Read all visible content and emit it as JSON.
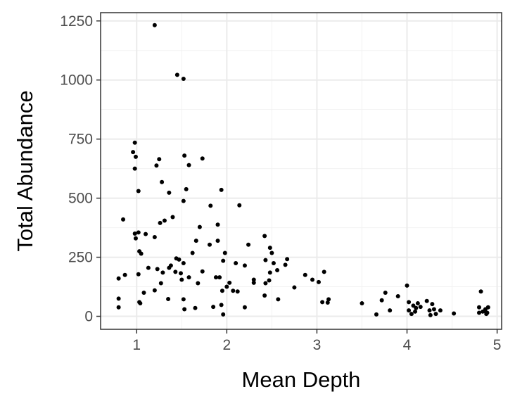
{
  "chart_data": {
    "type": "scatter",
    "xlabel": "Mean Depth",
    "ylabel": "Total Abundance",
    "xlim": [
      0.6,
      5.05
    ],
    "ylim": [
      -55,
      1285
    ],
    "x_ticks": [
      1,
      2,
      3,
      4,
      5
    ],
    "y_ticks": [
      0,
      250,
      500,
      750,
      1000,
      1250
    ],
    "x_tick_labels": [
      "1",
      "2",
      "3",
      "4",
      "5"
    ],
    "y_tick_labels": [
      "0",
      "250",
      "500",
      "750",
      "1000",
      "1250"
    ],
    "grid": true,
    "legend": "none",
    "point_color": "#000000",
    "points": [
      [
        1.2,
        1232
      ],
      [
        1.45,
        1022
      ],
      [
        1.52,
        1005
      ],
      [
        0.98,
        735
      ],
      [
        0.96,
        695
      ],
      [
        0.99,
        675
      ],
      [
        0.98,
        625
      ],
      [
        1.25,
        665
      ],
      [
        1.22,
        638
      ],
      [
        1.53,
        680
      ],
      [
        1.58,
        640
      ],
      [
        1.73,
        668
      ],
      [
        1.28,
        568
      ],
      [
        1.02,
        530
      ],
      [
        1.36,
        523
      ],
      [
        1.55,
        538
      ],
      [
        1.52,
        488
      ],
      [
        1.94,
        535
      ],
      [
        2.14,
        470
      ],
      [
        1.82,
        468
      ],
      [
        1.26,
        395
      ],
      [
        1.31,
        405
      ],
      [
        1.4,
        420
      ],
      [
        0.85,
        410
      ],
      [
        1.7,
        378
      ],
      [
        1.9,
        388
      ],
      [
        0.98,
        350
      ],
      [
        1.02,
        355
      ],
      [
        1.1,
        348
      ],
      [
        1.2,
        335
      ],
      [
        0.99,
        330
      ],
      [
        1.03,
        275
      ],
      [
        1.05,
        265
      ],
      [
        1.66,
        320
      ],
      [
        1.81,
        303
      ],
      [
        1.9,
        320
      ],
      [
        2.24,
        303
      ],
      [
        2.42,
        340
      ],
      [
        2.48,
        290
      ],
      [
        2.5,
        268
      ],
      [
        2.67,
        242
      ],
      [
        1.44,
        245
      ],
      [
        1.47,
        240
      ],
      [
        1.52,
        225
      ],
      [
        1.62,
        268
      ],
      [
        1.98,
        268
      ],
      [
        2.1,
        225
      ],
      [
        2.43,
        238
      ],
      [
        2.52,
        225
      ],
      [
        2.65,
        218
      ],
      [
        0.87,
        175
      ],
      [
        1.02,
        178
      ],
      [
        1.13,
        205
      ],
      [
        1.23,
        200
      ],
      [
        1.29,
        185
      ],
      [
        1.36,
        205
      ],
      [
        1.43,
        188
      ],
      [
        1.49,
        182
      ],
      [
        1.58,
        165
      ],
      [
        1.73,
        190
      ],
      [
        1.92,
        165
      ],
      [
        0.8,
        160
      ],
      [
        1.38,
        215
      ],
      [
        1.96,
        235
      ],
      [
        2.2,
        215
      ],
      [
        2.48,
        185
      ],
      [
        2.56,
        195
      ],
      [
        2.87,
        175
      ],
      [
        2.95,
        155
      ],
      [
        3.02,
        145
      ],
      [
        3.08,
        188
      ],
      [
        1.08,
        100
      ],
      [
        1.2,
        110
      ],
      [
        1.27,
        140
      ],
      [
        1.5,
        155
      ],
      [
        1.68,
        140
      ],
      [
        1.88,
        165
      ],
      [
        1.95,
        108
      ],
      [
        2.0,
        125
      ],
      [
        2.03,
        142
      ],
      [
        2.07,
        108
      ],
      [
        2.12,
        105
      ],
      [
        2.3,
        142
      ],
      [
        2.3,
        155
      ],
      [
        2.43,
        140
      ],
      [
        2.47,
        152
      ],
      [
        2.42,
        88
      ],
      [
        2.57,
        72
      ],
      [
        2.75,
        122
      ],
      [
        3.06,
        60
      ],
      [
        3.12,
        58
      ],
      [
        3.13,
        72
      ],
      [
        3.5,
        55
      ],
      [
        1.03,
        60
      ],
      [
        1.04,
        55
      ],
      [
        1.35,
        73
      ],
      [
        1.52,
        72
      ],
      [
        1.53,
        30
      ],
      [
        1.65,
        35
      ],
      [
        1.85,
        40
      ],
      [
        1.94,
        48
      ],
      [
        1.96,
        8
      ],
      [
        2.2,
        38
      ],
      [
        0.8,
        38
      ],
      [
        0.8,
        75
      ],
      [
        3.66,
        8
      ],
      [
        3.72,
        68
      ],
      [
        3.76,
        100
      ],
      [
        3.81,
        25
      ],
      [
        3.9,
        85
      ],
      [
        4.0,
        130
      ],
      [
        4.02,
        60
      ],
      [
        4.02,
        25
      ],
      [
        4.05,
        10
      ],
      [
        4.07,
        45
      ],
      [
        4.09,
        20
      ],
      [
        4.1,
        35
      ],
      [
        4.12,
        55
      ],
      [
        4.15,
        40
      ],
      [
        4.22,
        65
      ],
      [
        4.25,
        25
      ],
      [
        4.26,
        5
      ],
      [
        4.28,
        52
      ],
      [
        4.3,
        30
      ],
      [
        4.32,
        10
      ],
      [
        4.37,
        25
      ],
      [
        4.52,
        12
      ],
      [
        4.8,
        15
      ],
      [
        4.82,
        105
      ],
      [
        4.84,
        20
      ],
      [
        4.87,
        30
      ],
      [
        4.88,
        10
      ],
      [
        4.9,
        38
      ],
      [
        4.8,
        38
      ],
      [
        4.86,
        22
      ],
      [
        4.89,
        15
      ]
    ]
  }
}
